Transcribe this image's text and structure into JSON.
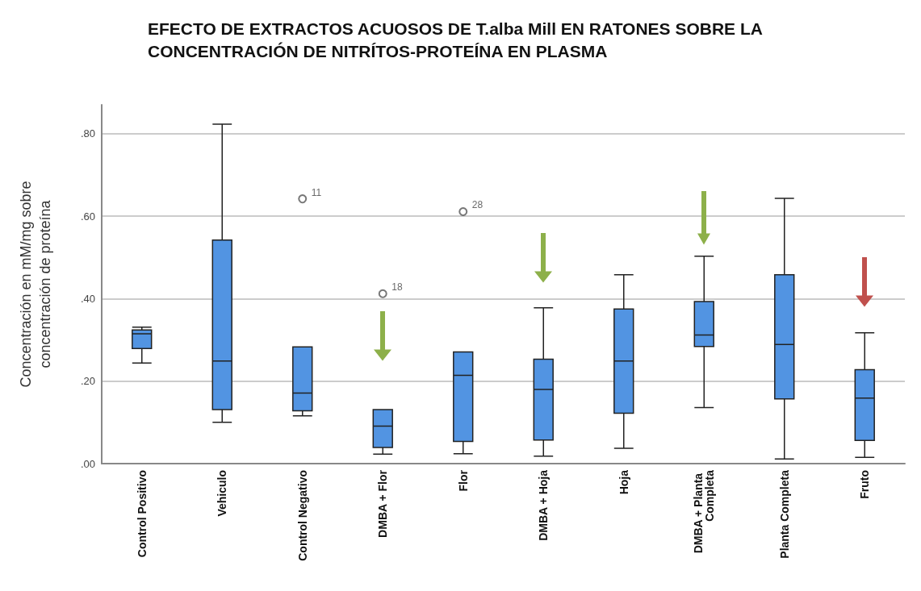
{
  "chart_data": {
    "type": "box",
    "title": "EFECTO DE EXTRACTOS ACUOSOS DE T.alba Mill EN RATONES SOBRE LA CONCENTRACIÓN DE NITRÍTOS-PROTEÍNA EN PLASMA",
    "ylabel": "Concentración en mM/mg sobre\nconcentración de proteína",
    "categories": [
      "Control Positivo",
      "Vehiculo",
      "Control Negativo",
      "DMBA + Flor",
      "Flor",
      "DMBA + Hoja",
      "Hoja",
      "DMBA + Planta Completa",
      "Planta Completa",
      "Fruto"
    ],
    "color": "#5294e2",
    "boxes": [
      {
        "low": 0.244,
        "q1": 0.279,
        "median": 0.315,
        "q3": 0.324,
        "high": 0.331
      },
      {
        "low": 0.1,
        "q1": 0.131,
        "median": 0.249,
        "q3": 0.542,
        "high": 0.823
      },
      {
        "low": 0.116,
        "q1": 0.128,
        "median": 0.171,
        "q3": 0.283,
        "high": 0.283,
        "outliers": [
          0.642
        ]
      },
      {
        "low": 0.023,
        "q1": 0.039,
        "median": 0.091,
        "q3": 0.131,
        "high": 0.131,
        "outliers": [
          0.412
        ]
      },
      {
        "low": 0.024,
        "q1": 0.054,
        "median": 0.214,
        "q3": 0.271,
        "high": 0.271,
        "outliers": [
          0.611
        ]
      },
      {
        "low": 0.018,
        "q1": 0.057,
        "median": 0.18,
        "q3": 0.253,
        "high": 0.378
      },
      {
        "low": 0.037,
        "q1": 0.122,
        "median": 0.249,
        "q3": 0.375,
        "high": 0.458
      },
      {
        "low": 0.136,
        "q1": 0.284,
        "median": 0.312,
        "q3": 0.393,
        "high": 0.503
      },
      {
        "low": 0.011,
        "q1": 0.157,
        "median": 0.289,
        "q3": 0.458,
        "high": 0.643
      },
      {
        "low": 0.015,
        "q1": 0.056,
        "median": 0.159,
        "q3": 0.228,
        "high": 0.317
      }
    ],
    "annotations": [
      "11",
      "18",
      "28"
    ],
    "ylim": [
      0,
      0.87
    ],
    "yticks": [
      {
        "value": 0,
        "label": ".00"
      },
      {
        "value": 0.2,
        "label": ".20"
      },
      {
        "value": 0.4,
        "label": ".40"
      },
      {
        "value": 0.6,
        "label": ".60"
      },
      {
        "value": 0.8,
        "label": ".80"
      }
    ],
    "grid": "y"
  }
}
